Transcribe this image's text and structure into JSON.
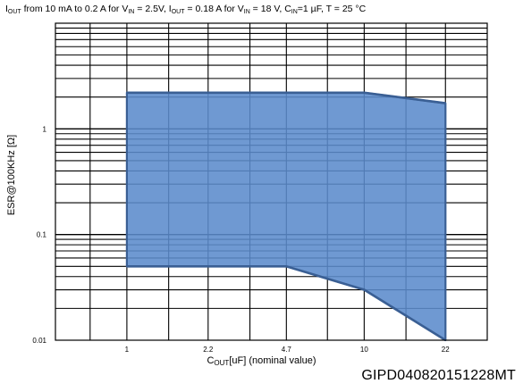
{
  "chart_data": {
    "type": "area",
    "title": {
      "t1": "I",
      "s1": "OUT",
      "t2": " from 10 mA to 0.2 A for V",
      "s2": "IN",
      "t3": " = 2.5V, I",
      "s3": "OUT",
      "t4": " = 0.18 A for V",
      "s4": "IN",
      "t5": " = 18 V, C",
      "s5": "IN",
      "t6": "=1 µF, T = 25 °C"
    },
    "xlabel": {
      "t1": "C",
      "s1": "OUT",
      "t2": " [uF] (nominal value)"
    },
    "ylabel": "ESR@100KHz [Ω]",
    "figure_code": "GIPD040820151228MT",
    "x_scale": "log",
    "y_scale": "log",
    "x_ticks": [
      {
        "value": 1,
        "label": "1"
      },
      {
        "value": 2.2,
        "label": "2.2"
      },
      {
        "value": 4.7,
        "label": "4.7"
      },
      {
        "value": 10,
        "label": "10"
      },
      {
        "value": 22,
        "label": "22"
      }
    ],
    "y_ticks": [
      {
        "value": 0.01,
        "label": "0.01"
      },
      {
        "value": 0.1,
        "label": "0.1"
      },
      {
        "value": 1,
        "label": "1"
      }
    ],
    "xlim": [
      0.5,
      33
    ],
    "ylim": [
      0.01,
      10
    ],
    "grid": true,
    "region": {
      "upper": [
        {
          "x": 1,
          "y": 2.2
        },
        {
          "x": 10,
          "y": 2.2
        },
        {
          "x": 22,
          "y": 1.75
        }
      ],
      "lower": [
        {
          "x": 1,
          "y": 0.05
        },
        {
          "x": 4.7,
          "y": 0.05
        },
        {
          "x": 10,
          "y": 0.03
        },
        {
          "x": 22,
          "y": 0.01
        }
      ],
      "fill_color": "#5b8bcc",
      "stroke_color": "#3a5f94"
    }
  }
}
